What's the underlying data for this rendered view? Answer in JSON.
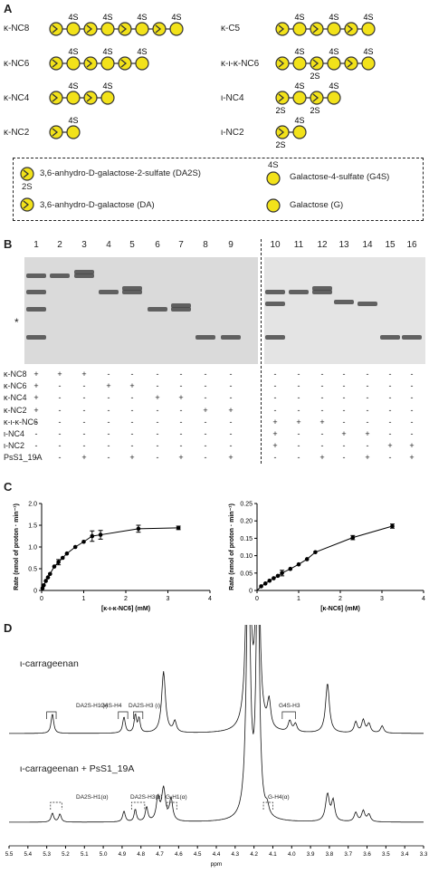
{
  "panel_a": {
    "letter": "A",
    "left_items": [
      {
        "label": "κ-NC8",
        "sulfates": [
          "4S",
          "4S",
          "4S",
          "4S"
        ]
      },
      {
        "label": "κ-NC6",
        "sulfates": [
          "4S",
          "4S",
          "4S"
        ]
      },
      {
        "label": "κ-NC4",
        "sulfates": [
          "4S",
          "4S"
        ]
      },
      {
        "label": "κ-NC2",
        "sulfates": [
          "4S"
        ]
      }
    ],
    "right_items": [
      {
        "label": "κ-C5",
        "sulfates": [
          "4S",
          "4S",
          "4S"
        ]
      },
      {
        "label": "κ-ι-κ-NC6",
        "sulfates": [
          "4S",
          "4S",
          "4S"
        ],
        "sub": "2S"
      },
      {
        "label": "ι-NC4",
        "sulfates": [
          "4S",
          "4S"
        ],
        "subs": [
          "2S",
          "2S"
        ]
      },
      {
        "label": "ι-NC2",
        "sulfates": [
          "4S"
        ],
        "subs": [
          "2S"
        ]
      }
    ],
    "legend": {
      "da2s": "3,6-anhydro-D-galactose-2-sulfate (DA2S)",
      "da2s_tag": "2S",
      "da": "3,6-anhydro-D-galactose (DA)",
      "g4s": "Galactose-4-sulfate (G4S)",
      "g4s_tag": "4S",
      "g": "Galactose (G)"
    },
    "colors": {
      "sugar_fill": "#f2e21a",
      "sugar_stroke": "#333333"
    }
  },
  "panel_b": {
    "letter": "B",
    "lanes": [
      "1",
      "2",
      "3",
      "4",
      "5",
      "6",
      "7",
      "8",
      "9",
      "10",
      "11",
      "12",
      "13",
      "14",
      "15",
      "16"
    ],
    "asterisk": "*",
    "rows": [
      {
        "label": "κ-NC8",
        "signs": [
          "+",
          "+",
          "+",
          "-",
          "-",
          "-",
          "-",
          "-",
          "-",
          "-",
          "-",
          "-",
          "-",
          "-",
          "-",
          "-"
        ]
      },
      {
        "label": "κ-NC6",
        "signs": [
          "+",
          "-",
          "-",
          "+",
          "+",
          "-",
          "-",
          "-",
          "-",
          "-",
          "-",
          "-",
          "-",
          "-",
          "-",
          "-"
        ]
      },
      {
        "label": "κ-NC4",
        "signs": [
          "+",
          "-",
          "-",
          "-",
          "-",
          "+",
          "+",
          "-",
          "-",
          "-",
          "-",
          "-",
          "-",
          "-",
          "-",
          "-"
        ]
      },
      {
        "label": "κ-NC2",
        "signs": [
          "+",
          "-",
          "-",
          "-",
          "-",
          "-",
          "-",
          "+",
          "+",
          "-",
          "-",
          "-",
          "-",
          "-",
          "-",
          "-"
        ]
      },
      {
        "label": "κ-ι-κ-NC6",
        "signs": [
          "-",
          "-",
          "-",
          "-",
          "-",
          "-",
          "-",
          "-",
          "-",
          "+",
          "+",
          "+",
          "-",
          "-",
          "-",
          "-"
        ]
      },
      {
        "label": "ι-NC4",
        "signs": [
          "-",
          "-",
          "-",
          "-",
          "-",
          "-",
          "-",
          "-",
          "-",
          "+",
          "-",
          "-",
          "+",
          "+",
          "-",
          "-"
        ]
      },
      {
        "label": "ι-NC2",
        "signs": [
          "-",
          "-",
          "-",
          "-",
          "-",
          "-",
          "-",
          "-",
          "-",
          "+",
          "-",
          "-",
          "-",
          "-",
          "+",
          "+"
        ]
      },
      {
        "label": "PsS1_19A",
        "signs": [
          "-",
          "-",
          "+",
          "-",
          "+",
          "-",
          "+",
          "-",
          "+",
          "-",
          "-",
          "+",
          "-",
          "+",
          "-",
          "+"
        ]
      }
    ]
  },
  "panel_c": {
    "letter": "C",
    "chart_data": [
      {
        "type": "scatter",
        "xlabel": "[κ-ι-κ-NC6] (mM)",
        "ylabel": "Rate (nmol of proton · min⁻¹)",
        "xlim": [
          0,
          4
        ],
        "ylim": [
          0,
          2.0
        ],
        "xticks": [
          "0",
          "1",
          "2",
          "3",
          "4"
        ],
        "yticks": [
          "0",
          "0.5",
          "1.0",
          "1.5",
          "2.0"
        ],
        "x": [
          0.02,
          0.05,
          0.1,
          0.15,
          0.2,
          0.3,
          0.4,
          0.5,
          0.6,
          0.8,
          1.0,
          1.2,
          1.4,
          2.3,
          3.25
        ],
        "y": [
          0.05,
          0.12,
          0.22,
          0.3,
          0.38,
          0.55,
          0.65,
          0.75,
          0.85,
          1.0,
          1.12,
          1.25,
          1.28,
          1.42,
          1.44
        ],
        "errors": [
          0,
          0,
          0,
          0,
          0,
          0,
          0.06,
          0,
          0,
          0,
          0,
          0.12,
          0.1,
          0.08,
          0.04
        ],
        "fit": "michaelis-menten"
      },
      {
        "type": "scatter",
        "xlabel": "[κ-NC6] (mM)",
        "ylabel": "Rate (nmol of proton · min⁻¹)",
        "xlim": [
          0,
          4
        ],
        "ylim": [
          0,
          0.25
        ],
        "xticks": [
          "0",
          "1",
          "2",
          "3",
          "4"
        ],
        "yticks": [
          "0",
          "0.05",
          "0.10",
          "0.15",
          "0.20",
          "0.25"
        ],
        "x": [
          0.1,
          0.2,
          0.3,
          0.4,
          0.5,
          0.6,
          0.8,
          1.0,
          1.2,
          1.4,
          2.3,
          3.25
        ],
        "y": [
          0.012,
          0.02,
          0.028,
          0.035,
          0.042,
          0.05,
          0.062,
          0.075,
          0.09,
          0.11,
          0.152,
          0.185
        ],
        "errors": [
          0,
          0,
          0,
          0,
          0,
          0.008,
          0,
          0,
          0,
          0,
          0.006,
          0.006
        ],
        "fit": "michaelis-menten"
      }
    ]
  },
  "panel_d": {
    "letter": "D",
    "spectrum_top_label": "ι-carrageenan",
    "spectrum_bottom_label": "ι-carrageenan + PsS1_19A",
    "top_peaks": [
      "DA2S-H1 (ι)",
      "G4S-H4",
      "DA2S-H3 (ι)",
      "G4S-H3"
    ],
    "bottom_peaks": [
      "DA2S-H1(α)",
      "DA2S-H3(α)",
      "G-H1(α)",
      "G-H4(α)"
    ],
    "xaxis_ticks": [
      "5.5",
      "5.4",
      "5.3",
      "5.2",
      "5.1",
      "5.0",
      "4.9",
      "4.8",
      "4.7",
      "4.6",
      "4.5",
      "4.4",
      "4.3",
      "4.2",
      "4.1",
      "4.0",
      "3.9",
      "3.8",
      "3.7",
      "3.6",
      "3.5",
      "3.4",
      "3.3"
    ],
    "xaxis_label": "ppm"
  }
}
